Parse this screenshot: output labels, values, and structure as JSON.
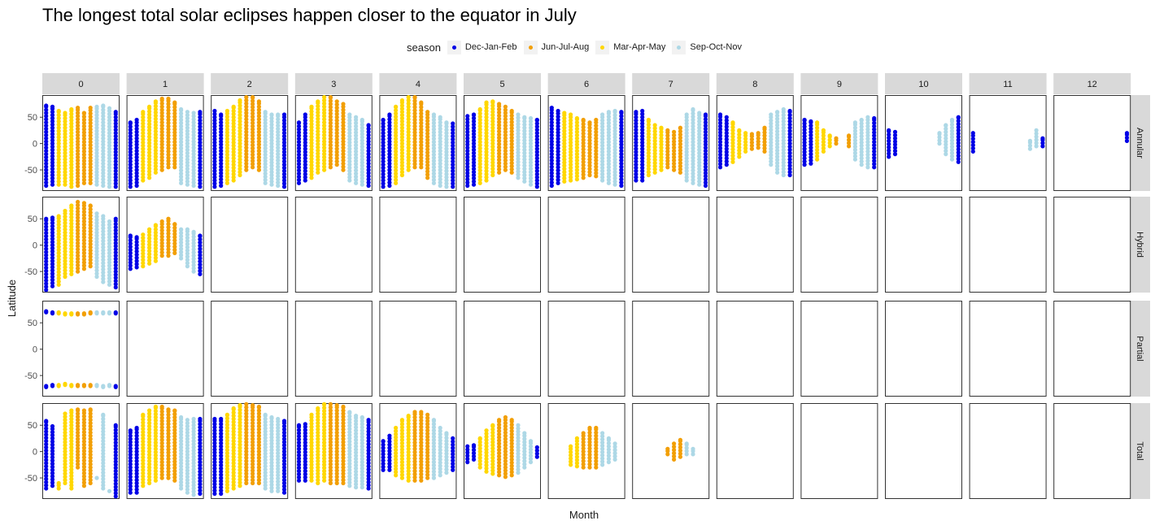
{
  "title": "The longest total solar eclipses happen closer to the equator in July",
  "legend": {
    "title": "season",
    "items": [
      {
        "label": "Dec-Jan-Feb",
        "color": "#0000e6"
      },
      {
        "label": "Jun-Jul-Aug",
        "color": "#f29f05"
      },
      {
        "label": "Mar-Apr-May",
        "color": "#ffd700"
      },
      {
        "label": "Sep-Oct-Nov",
        "color": "#add8e6"
      }
    ]
  },
  "chart_data": {
    "type": "scatter",
    "facet_cols": [
      "0",
      "1",
      "2",
      "3",
      "4",
      "5",
      "6",
      "7",
      "8",
      "9",
      "10",
      "11",
      "12"
    ],
    "facet_rows": [
      "Annular",
      "Hybrid",
      "Partial",
      "Total"
    ],
    "xlabel": "Month",
    "ylabel": "Latitude",
    "ylim": [
      -90,
      92
    ],
    "yticks": [
      -50,
      0,
      50
    ],
    "xlim": [
      0.4,
      12.6
    ],
    "grid": false,
    "legend_position": "top",
    "season_of_month": {
      "1": "Dec-Jan-Feb",
      "2": "Dec-Jan-Feb",
      "3": "Mar-Apr-May",
      "4": "Mar-Apr-May",
      "5": "Mar-Apr-May",
      "6": "Jun-Jul-Aug",
      "7": "Jun-Jul-Aug",
      "8": "Jun-Jul-Aug",
      "9": "Sep-Oct-Nov",
      "10": "Sep-Oct-Nov",
      "11": "Sep-Oct-Nov",
      "12": "Dec-Jan-Feb"
    },
    "panels": {
      "Annular": [
        [
          [
            -80,
            72
          ],
          [
            -78,
            70
          ],
          [
            -78,
            62
          ],
          [
            -78,
            58
          ],
          [
            -82,
            65
          ],
          [
            -80,
            68
          ],
          [
            -75,
            58
          ],
          [
            -75,
            68
          ],
          [
            -78,
            70
          ],
          [
            -80,
            72
          ],
          [
            -82,
            67
          ],
          [
            -82,
            60
          ]
        ],
        [
          [
            -82,
            40
          ],
          [
            -80,
            45
          ],
          [
            -70,
            60
          ],
          [
            -65,
            70
          ],
          [
            -55,
            80
          ],
          [
            -50,
            85
          ],
          [
            -45,
            85
          ],
          [
            -45,
            78
          ],
          [
            -75,
            65
          ],
          [
            -78,
            60
          ],
          [
            -80,
            58
          ],
          [
            -82,
            60
          ]
        ],
        [
          [
            -82,
            62
          ],
          [
            -80,
            55
          ],
          [
            -75,
            62
          ],
          [
            -70,
            70
          ],
          [
            -60,
            82
          ],
          [
            -50,
            88
          ],
          [
            -45,
            88
          ],
          [
            -50,
            80
          ],
          [
            -75,
            60
          ],
          [
            -78,
            55
          ],
          [
            -80,
            55
          ],
          [
            -82,
            55
          ]
        ],
        [
          [
            -75,
            40
          ],
          [
            -70,
            55
          ],
          [
            -65,
            70
          ],
          [
            -55,
            80
          ],
          [
            -50,
            88
          ],
          [
            -45,
            88
          ],
          [
            -40,
            80
          ],
          [
            -50,
            75
          ],
          [
            -70,
            55
          ],
          [
            -75,
            50
          ],
          [
            -78,
            45
          ],
          [
            -80,
            35
          ]
        ],
        [
          [
            -82,
            45
          ],
          [
            -80,
            55
          ],
          [
            -75,
            70
          ],
          [
            -60,
            82
          ],
          [
            -50,
            88
          ],
          [
            -45,
            88
          ],
          [
            -45,
            78
          ],
          [
            -65,
            60
          ],
          [
            -75,
            55
          ],
          [
            -80,
            50
          ],
          [
            -82,
            40
          ],
          [
            -82,
            38
          ]
        ],
        [
          [
            -80,
            52
          ],
          [
            -78,
            55
          ],
          [
            -75,
            65
          ],
          [
            -70,
            78
          ],
          [
            -60,
            80
          ],
          [
            -55,
            75
          ],
          [
            -50,
            70
          ],
          [
            -55,
            62
          ],
          [
            -65,
            55
          ],
          [
            -72,
            50
          ],
          [
            -78,
            48
          ],
          [
            -82,
            45
          ]
        ],
        [
          [
            -80,
            68
          ],
          [
            -75,
            62
          ],
          [
            -72,
            58
          ],
          [
            -70,
            55
          ],
          [
            -68,
            48
          ],
          [
            -65,
            45
          ],
          [
            -60,
            40
          ],
          [
            -62,
            45
          ],
          [
            -70,
            55
          ],
          [
            -75,
            60
          ],
          [
            -78,
            62
          ],
          [
            -80,
            60
          ]
        ],
        [
          [
            -70,
            60
          ],
          [
            -70,
            62
          ],
          [
            -60,
            45
          ],
          [
            -55,
            35
          ],
          [
            -50,
            30
          ],
          [
            -45,
            25
          ],
          [
            -50,
            22
          ],
          [
            -55,
            30
          ],
          [
            -70,
            55
          ],
          [
            -75,
            65
          ],
          [
            -78,
            58
          ],
          [
            -80,
            55
          ]
        ],
        [
          [
            -45,
            55
          ],
          [
            -40,
            50
          ],
          [
            -35,
            40
          ],
          [
            -25,
            25
          ],
          [
            -15,
            20
          ],
          [
            -10,
            18
          ],
          [
            -8,
            20
          ],
          [
            -15,
            30
          ],
          [
            -40,
            55
          ],
          [
            -55,
            60
          ],
          [
            -60,
            65
          ],
          [
            -60,
            62
          ]
        ],
        [
          [
            -40,
            45
          ],
          [
            -38,
            42
          ],
          [
            -30,
            40
          ],
          [
            -15,
            25
          ],
          [
            -5,
            15
          ],
          [
            0,
            10
          ],
          [
            null,
            null
          ],
          [
            -5,
            15
          ],
          [
            -30,
            40
          ],
          [
            -40,
            45
          ],
          [
            -45,
            50
          ],
          [
            -45,
            48
          ]
        ],
        [
          [
            -25,
            25
          ],
          [
            -20,
            22
          ],
          [
            null,
            null
          ],
          [
            null,
            null
          ],
          [
            null,
            null
          ],
          [
            null,
            null
          ],
          [
            null,
            null
          ],
          [
            null,
            null
          ],
          [
            0,
            20
          ],
          [
            -20,
            35
          ],
          [
            -30,
            45
          ],
          [
            -35,
            50
          ]
        ],
        [
          [
            -15,
            20
          ],
          [
            null,
            null
          ],
          [
            null,
            null
          ],
          [
            null,
            null
          ],
          [
            null,
            null
          ],
          [
            null,
            null
          ],
          [
            null,
            null
          ],
          [
            null,
            null
          ],
          [
            null,
            null
          ],
          [
            -10,
            5
          ],
          [
            -5,
            25
          ],
          [
            -5,
            10
          ]
        ],
        [
          [
            null,
            null
          ],
          [
            null,
            null
          ],
          [
            null,
            null
          ],
          [
            null,
            null
          ],
          [
            null,
            null
          ],
          [
            null,
            null
          ],
          [
            null,
            null
          ],
          [
            null,
            null
          ],
          [
            null,
            null
          ],
          [
            null,
            null
          ],
          [
            null,
            null
          ],
          [
            5,
            20
          ]
        ]
      ],
      "Hybrid": [
        [
          [
            -85,
            50
          ],
          [
            -78,
            52
          ],
          [
            -75,
            55
          ],
          [
            -60,
            65
          ],
          [
            -55,
            75
          ],
          [
            -50,
            82
          ],
          [
            -45,
            80
          ],
          [
            -40,
            75
          ],
          [
            -60,
            60
          ],
          [
            -70,
            55
          ],
          [
            -75,
            45
          ],
          [
            -80,
            50
          ]
        ],
        [
          [
            -45,
            18
          ],
          [
            -42,
            15
          ],
          [
            -40,
            20
          ],
          [
            -35,
            30
          ],
          [
            -30,
            38
          ],
          [
            -20,
            45
          ],
          [
            -20,
            50
          ],
          [
            -15,
            40
          ],
          [
            -25,
            30
          ],
          [
            -40,
            30
          ],
          [
            -50,
            25
          ],
          [
            -55,
            18
          ]
        ],
        [],
        [],
        [],
        [],
        [],
        [],
        [],
        [],
        [],
        [],
        []
      ],
      "Partial": [
        [
          [
            -72,
            72
          ],
          [
            -70,
            70
          ],
          [
            -70,
            70
          ],
          [
            -68,
            68
          ],
          [
            -70,
            68
          ],
          [
            -70,
            68
          ],
          [
            -70,
            68
          ],
          [
            -70,
            70
          ],
          [
            -70,
            70
          ],
          [
            -72,
            70
          ],
          [
            -70,
            70
          ],
          [
            -72,
            70
          ]
        ],
        [],
        [],
        [],
        [],
        [],
        [],
        [],
        [],
        [],
        [],
        [],
        []
      ],
      "Total": [
        [
          [
            -70,
            58
          ],
          [
            -65,
            48
          ],
          [
            -70,
            -60
          ],
          [
            -60,
            72
          ],
          [
            -70,
            78
          ],
          [
            -30,
            80
          ],
          [
            -65,
            78
          ],
          [
            -60,
            80
          ],
          [
            -50,
            null
          ],
          [
            -70,
            70
          ],
          [
            -75,
            null
          ],
          [
            -85,
            50
          ]
        ],
        [
          [
            -78,
            40
          ],
          [
            -78,
            45
          ],
          [
            -65,
            70
          ],
          [
            -60,
            78
          ],
          [
            -55,
            85
          ],
          [
            -50,
            85
          ],
          [
            -50,
            80
          ],
          [
            -55,
            78
          ],
          [
            -70,
            65
          ],
          [
            -78,
            60
          ],
          [
            -82,
            62
          ],
          [
            -80,
            62
          ]
        ],
        [
          [
            -80,
            62
          ],
          [
            -80,
            62
          ],
          [
            -75,
            70
          ],
          [
            -70,
            82
          ],
          [
            -65,
            88
          ],
          [
            -60,
            90
          ],
          [
            -60,
            88
          ],
          [
            -60,
            85
          ],
          [
            -70,
            70
          ],
          [
            -75,
            65
          ],
          [
            -75,
            62
          ],
          [
            -78,
            58
          ]
        ],
        [
          [
            -55,
            50
          ],
          [
            -55,
            52
          ],
          [
            -55,
            70
          ],
          [
            -60,
            82
          ],
          [
            -55,
            90
          ],
          [
            -60,
            90
          ],
          [
            -60,
            88
          ],
          [
            -60,
            85
          ],
          [
            -65,
            75
          ],
          [
            -68,
            68
          ],
          [
            -68,
            65
          ],
          [
            -70,
            60
          ]
        ],
        [
          [
            -35,
            20
          ],
          [
            -35,
            30
          ],
          [
            -45,
            45
          ],
          [
            -50,
            60
          ],
          [
            -55,
            68
          ],
          [
            -55,
            75
          ],
          [
            -55,
            75
          ],
          [
            -50,
            70
          ],
          [
            -50,
            60
          ],
          [
            -45,
            45
          ],
          [
            -40,
            35
          ],
          [
            -35,
            25
          ]
        ],
        [
          [
            -20,
            10
          ],
          [
            -15,
            12
          ],
          [
            -30,
            25
          ],
          [
            -38,
            40
          ],
          [
            -42,
            50
          ],
          [
            -45,
            60
          ],
          [
            -48,
            65
          ],
          [
            -45,
            60
          ],
          [
            -40,
            50
          ],
          [
            -30,
            35
          ],
          [
            -20,
            20
          ],
          [
            -10,
            8
          ]
        ],
        [
          [
            null,
            null
          ],
          [
            null,
            null
          ],
          [
            null,
            null
          ],
          [
            -25,
            10
          ],
          [
            -28,
            25
          ],
          [
            -30,
            35
          ],
          [
            -30,
            45
          ],
          [
            -30,
            45
          ],
          [
            -25,
            35
          ],
          [
            -20,
            25
          ],
          [
            -15,
            15
          ],
          [
            null,
            null
          ]
        ],
        [
          [
            null,
            null
          ],
          [
            null,
            null
          ],
          [
            null,
            null
          ],
          [
            null,
            null
          ],
          [
            null,
            null
          ],
          [
            -5,
            5
          ],
          [
            -15,
            15
          ],
          [
            -10,
            22
          ],
          [
            -5,
            15
          ],
          [
            -5,
            5
          ],
          [
            null,
            null
          ],
          [
            null,
            null
          ]
        ],
        [],
        [],
        [],
        [],
        []
      ]
    }
  }
}
